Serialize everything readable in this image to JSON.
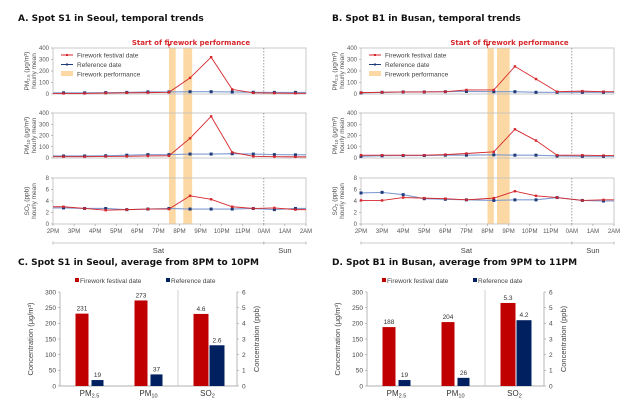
{
  "chart_data": [
    {
      "id": "A",
      "type": "line",
      "title": "A. Spot S1 in Seoul, temporal trends",
      "annotation": "Start of firework performance",
      "x": [
        "2PM",
        "3PM",
        "4PM",
        "5PM",
        "6PM",
        "7PM",
        "8PM",
        "9PM",
        "10PM",
        "11PM",
        "0AM",
        "1AM",
        "2AM"
      ],
      "days": [
        {
          "label": "Sat",
          "from": "2PM",
          "to": "0AM"
        },
        {
          "label": "Sun",
          "from": "0AM",
          "to": "2AM"
        }
      ],
      "point_hours": [
        2.5,
        3.5,
        4.5,
        5.5,
        6.5,
        7.5,
        8.5,
        9.5,
        10.5,
        11.5,
        12.5,
        13.5
      ],
      "firework_bands": [
        [
          7.5,
          7.82
        ],
        [
          8.18,
          8.6
        ]
      ],
      "annotation_hour": 7.5,
      "legend": [
        "Firework festival date",
        "Reference date",
        "Firework performance"
      ],
      "colors": {
        "festival": "#d6262b",
        "reference": "#1f3b7a",
        "reference_line": "#7f9bd1",
        "band": "#fcd9a4"
      },
      "subplots": [
        {
          "ylabel_main": "PM2.5 (μg/m³)",
          "ylabel_sub": "hourly mean",
          "ylim": [
            0,
            400
          ],
          "yticks": [
            0,
            100,
            200,
            300,
            400
          ],
          "series": [
            {
              "name": "Firework festival date",
              "values": [
                5,
                5,
                8,
                10,
                12,
                15,
                140,
                320,
                40,
                10,
                8,
                6
              ]
            },
            {
              "name": "Reference date",
              "values": [
                10,
                10,
                12,
                14,
                18,
                18,
                20,
                20,
                18,
                15,
                14,
                14
              ]
            }
          ]
        },
        {
          "ylabel_main": "PM10 (μg/m³)",
          "ylabel_sub": "hourly mean",
          "ylim": [
            0,
            400
          ],
          "yticks": [
            0,
            100,
            200,
            300,
            400
          ],
          "series": [
            {
              "name": "Firework festival date",
              "values": [
                12,
                12,
                14,
                15,
                18,
                20,
                175,
                370,
                50,
                15,
                12,
                10
              ]
            },
            {
              "name": "Reference date",
              "values": [
                18,
                18,
                20,
                25,
                30,
                30,
                35,
                35,
                38,
                35,
                30,
                28
              ]
            }
          ]
        },
        {
          "ylabel_main": "SO2 (ppb)",
          "ylabel_sub": "hourly mean",
          "ylim": [
            0,
            8
          ],
          "yticks": [
            0,
            2,
            4,
            6,
            8
          ],
          "series": [
            {
              "name": "Firework festival date",
              "values": [
                3.0,
                2.7,
                2.4,
                2.5,
                2.6,
                2.6,
                4.9,
                4.3,
                3.0,
                2.7,
                2.8,
                2.5
              ]
            },
            {
              "name": "Reference date",
              "values": [
                2.8,
                2.7,
                2.7,
                2.5,
                2.6,
                2.7,
                2.6,
                2.6,
                2.6,
                2.7,
                2.5,
                2.7
              ]
            }
          ]
        }
      ]
    },
    {
      "id": "B",
      "type": "line",
      "title": "B. Spot B1 in Busan, temporal trends",
      "annotation": "Start of firework performance",
      "x": [
        "2PM",
        "3PM",
        "4PM",
        "5PM",
        "6PM",
        "7PM",
        "8PM",
        "9PM",
        "10PM",
        "11PM",
        "0AM",
        "1AM",
        "2AM"
      ],
      "days": [
        {
          "label": "Sat",
          "from": "2PM",
          "to": "0AM"
        },
        {
          "label": "Sun",
          "from": "0AM",
          "to": "2AM"
        }
      ],
      "point_hours": [
        2.0,
        3.0,
        4.0,
        5.0,
        6.0,
        7.0,
        8.3,
        9.3,
        10.3,
        11.3,
        12.5,
        13.5
      ],
      "firework_bands": [
        [
          8.0,
          8.3
        ],
        [
          8.45,
          9.05
        ]
      ],
      "annotation_hour": 8.0,
      "legend": [
        "Firework festival date",
        "Reference date",
        "Firework performance"
      ],
      "colors": {
        "festival": "#d6262b",
        "reference": "#1f3b7a",
        "reference_line": "#7f9bd1",
        "band": "#fcd9a4"
      },
      "subplots": [
        {
          "ylabel_main": "PM2.5 (μg/m³)",
          "ylabel_sub": "hourly mean",
          "ylim": [
            0,
            400
          ],
          "yticks": [
            0,
            100,
            200,
            300,
            400
          ],
          "series": [
            {
              "name": "Firework festival date",
              "values": [
                12,
                15,
                18,
                18,
                20,
                35,
                35,
                240,
                130,
                20,
                25,
                20
              ]
            },
            {
              "name": "Reference date",
              "values": [
                10,
                15,
                18,
                18,
                20,
                22,
                20,
                20,
                15,
                15,
                15,
                15
              ]
            }
          ]
        },
        {
          "ylabel_main": "PM10 (μg/m³)",
          "ylabel_sub": "hourly mean",
          "ylim": [
            0,
            400
          ],
          "yticks": [
            0,
            100,
            200,
            300,
            400
          ],
          "series": [
            {
              "name": "Firework festival date",
              "values": [
                25,
                25,
                25,
                25,
                30,
                40,
                55,
                255,
                155,
                25,
                25,
                22
              ]
            },
            {
              "name": "Reference date",
              "values": [
                15,
                20,
                22,
                22,
                25,
                25,
                28,
                25,
                25,
                18,
                15,
                15
              ]
            }
          ]
        },
        {
          "ylabel_main": "SO2 (ppb)",
          "ylabel_sub": "hourly mean",
          "ylim": [
            0,
            8
          ],
          "yticks": [
            0,
            2,
            4,
            6,
            8
          ],
          "series": [
            {
              "name": "Firework festival date",
              "values": [
                4.1,
                4.1,
                4.6,
                4.5,
                4.4,
                4.2,
                4.5,
                5.7,
                4.9,
                4.6,
                4.1,
                4.2
              ]
            },
            {
              "name": "Reference date",
              "values": [
                5.4,
                5.5,
                5.1,
                4.4,
                4.3,
                4.2,
                4.1,
                4.2,
                4.2,
                4.6,
                4.1,
                4.0
              ]
            }
          ]
        }
      ]
    },
    {
      "id": "C",
      "type": "bar",
      "title": "C. Spot S1 in Seoul, average from 8PM to 10PM",
      "categories": [
        "PM2.5",
        "PM10",
        "SO2"
      ],
      "series": [
        {
          "name": "Firework festival date",
          "color": "#c00000",
          "values": [
            231,
            273,
            4.6
          ],
          "labels": [
            "231",
            "273",
            "4.6"
          ]
        },
        {
          "name": "Reference date",
          "color": "#002060",
          "values": [
            19,
            37,
            2.6
          ],
          "labels": [
            "19",
            "37",
            "2.6"
          ]
        }
      ],
      "ylabel_left": "Concentration (μg/m³)",
      "ylim_left": [
        0,
        300
      ],
      "yticks_left": [
        0,
        50,
        100,
        150,
        200,
        250,
        300
      ],
      "ylabel_right": "Concentration (ppb)",
      "ylim_right": [
        0,
        6
      ],
      "yticks_right": [
        0,
        1,
        2,
        3,
        4,
        5,
        6
      ],
      "right_axis_categories": [
        "SO2"
      ],
      "legend": "top"
    },
    {
      "id": "D",
      "type": "bar",
      "title": "D. Spot B1 in Busan, average from 9PM to 11PM",
      "categories": [
        "PM2.5",
        "PM10",
        "SO2"
      ],
      "series": [
        {
          "name": "Firework festival date",
          "color": "#c00000",
          "values": [
            188,
            204,
            5.3
          ],
          "labels": [
            "188",
            "204",
            "5.3"
          ]
        },
        {
          "name": "Reference date",
          "color": "#002060",
          "values": [
            19,
            26,
            4.2
          ],
          "labels": [
            "19",
            "26",
            "4.2"
          ]
        }
      ],
      "ylabel_left": "Concentration (μg/m³)",
      "ylim_left": [
        0,
        300
      ],
      "yticks_left": [
        0,
        50,
        100,
        150,
        200,
        250,
        300
      ],
      "ylabel_right": "Concentration (ppb)",
      "ylim_right": [
        0,
        6
      ],
      "yticks_right": [
        0,
        1,
        2,
        3,
        4,
        5,
        6
      ],
      "right_axis_categories": [
        "SO2"
      ],
      "legend": "top"
    }
  ]
}
